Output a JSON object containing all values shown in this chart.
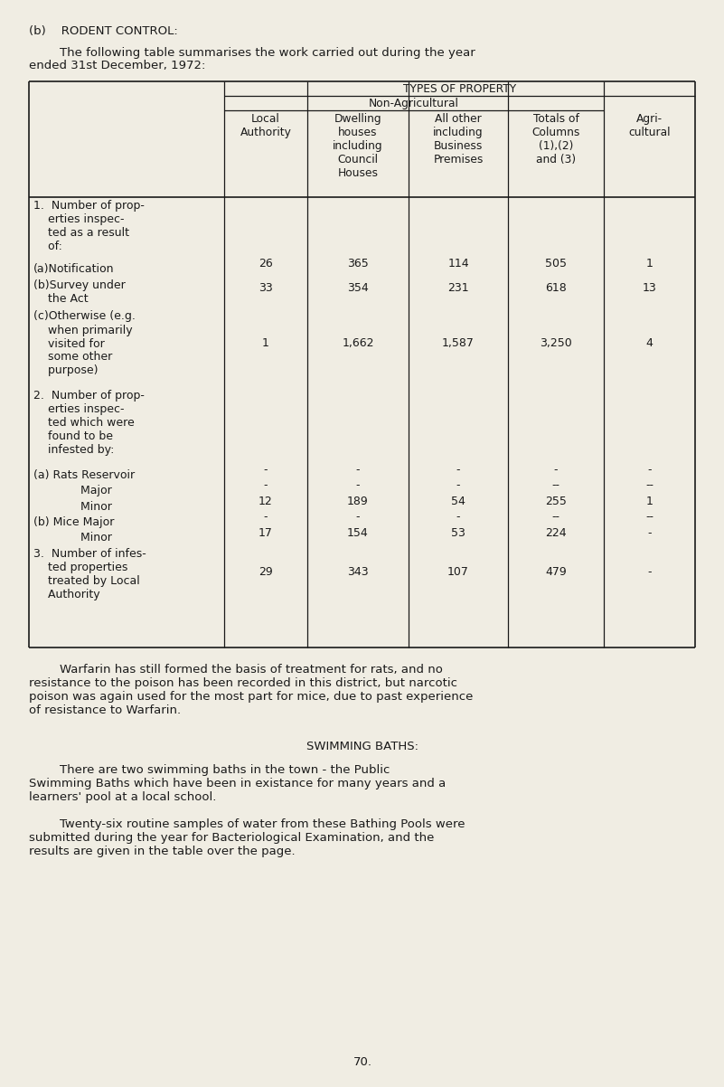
{
  "bg_color": "#f0ede3",
  "text_color": "#1a1a1a",
  "page_title": "(b)    RODENT CONTROL:",
  "intro_line1": "        The following table summarises the work carried out during the year",
  "intro_line2": "ended 31st December, 1972:",
  "col_headers": [
    "Local\nAuthority",
    "Dwelling\nhouses\nincluding\nCouncil\nHouses",
    "All other\nincluding\nBusiness\nPremises",
    "Totals of\nColumns\n(1),(2)\nand (3)",
    "Agri-\ncultural"
  ],
  "rows": [
    {
      "label": "1.  Number of prop-\n    erties inspec-\n    ted as a result\n    of:",
      "vals": [
        "",
        "",
        "",
        "",
        ""
      ],
      "lh": 4
    },
    {
      "label": "(a)Notification",
      "vals": [
        "26",
        "365",
        "114",
        "505",
        "1"
      ],
      "lh": 1
    },
    {
      "label": "(b)Survey under\n    the Act",
      "vals": [
        "33",
        "354",
        "231",
        "618",
        "13"
      ],
      "lh": 2
    },
    {
      "label": "(c)Otherwise (e.g.\n    when primarily\n    visited for\n    some other\n    purpose)",
      "vals": [
        "1",
        "1,662",
        "1,587",
        "3,250",
        "4"
      ],
      "lh": 5
    },
    {
      "label": "2.  Number of prop-\n    erties inspec-\n    ted which were\n    found to be\n    infested by:",
      "vals": [
        "",
        "",
        "",
        "",
        ""
      ],
      "lh": 5
    },
    {
      "label": "(a) Rats Reservoir",
      "vals": [
        "-",
        "-",
        "-",
        "-",
        "-"
      ],
      "lh": 1
    },
    {
      "label": "             Major",
      "vals": [
        "-",
        "-",
        "-",
        "--",
        "--"
      ],
      "lh": 1
    },
    {
      "label": "             Minor",
      "vals": [
        "12",
        "189",
        "54",
        "255",
        "1"
      ],
      "lh": 1
    },
    {
      "label": "(b) Mice Major",
      "vals": [
        "-",
        "-",
        "-",
        "--",
        "--"
      ],
      "lh": 1
    },
    {
      "label": "             Minor",
      "vals": [
        "17",
        "154",
        "53",
        "224",
        "-"
      ],
      "lh": 1
    },
    {
      "label": "3.  Number of infes-\n    ted properties\n    treated by Local\n    Authority",
      "vals": [
        "29",
        "343",
        "107",
        "479",
        "-"
      ],
      "lh": 4
    }
  ],
  "warfarin_text": "        Warfarin has still formed the basis of treatment for rats, and no\nresistance to the poison has been recorded in this district, but narcotic\npoison was again used for the most part for mice, due to past experience\nof resistance to Warfarin.",
  "swimming_title": "SWIMMING BATHS:",
  "swimming_text1": "        There are two swimming baths in the town - the Public\nSwimming Baths which have been in existance for many years and a\nlearners' pool at a local school.",
  "swimming_text2": "        Twenty-six routine samples of water from these Bathing Pools were\nsubmitted during the year for Bacteriological Examination, and the\nresults are given in the table over the page.",
  "page_number": "70.",
  "font_size_body": 9.5,
  "font_size_table": 9.0,
  "font_size_header": 8.8
}
